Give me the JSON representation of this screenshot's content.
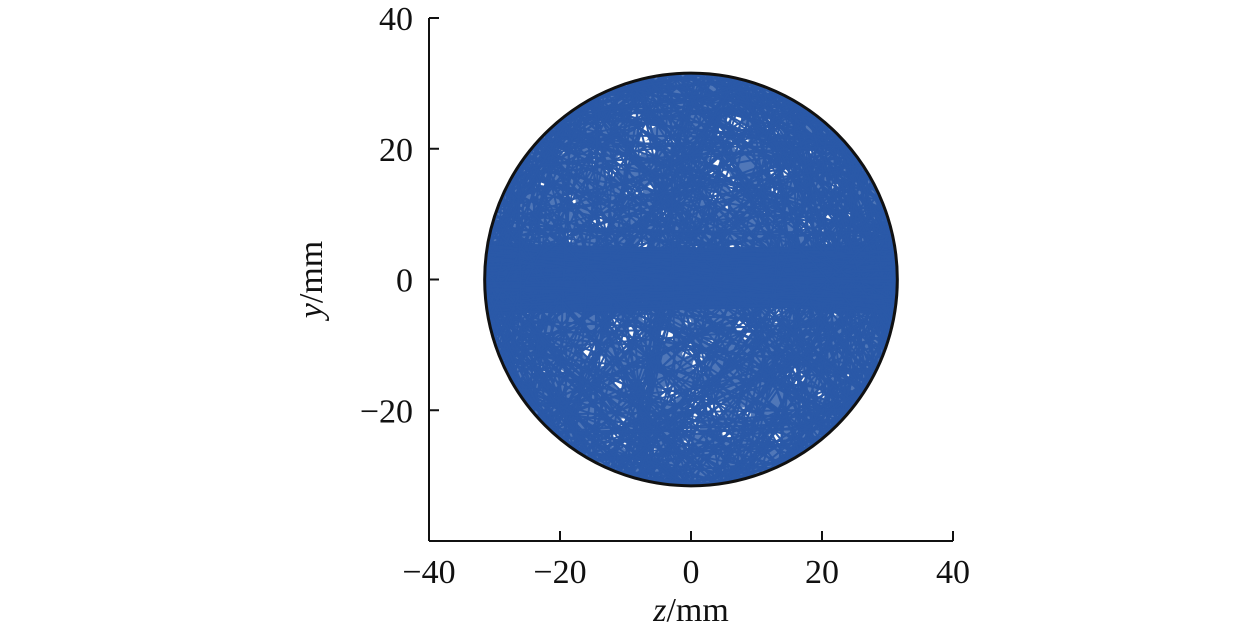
{
  "chart_data": {
    "type": "line",
    "title": "",
    "xlabel": {
      "var": "z",
      "unit": "/mm"
    },
    "ylabel": {
      "var": "y",
      "unit": "/mm"
    },
    "xlim": [
      -40,
      40
    ],
    "ylim": [
      -40,
      40
    ],
    "xticks": [
      -40,
      -20,
      0,
      20,
      40
    ],
    "yticks": [
      -20,
      0,
      20,
      40
    ],
    "xtick_labels": [
      "−40",
      "−20",
      "0",
      "20",
      "40"
    ],
    "ytick_labels": [
      "−20",
      "0",
      "20",
      "40"
    ],
    "grid": false,
    "legend": "none",
    "boundary_circle": {
      "center": [
        0,
        0
      ],
      "radius": 31.5,
      "color": "#111111"
    },
    "series": [
      {
        "color": "#2a59a8",
        "path_type": "chords-in-circle",
        "radius": 31.5,
        "chord_count": 900
      }
    ]
  }
}
